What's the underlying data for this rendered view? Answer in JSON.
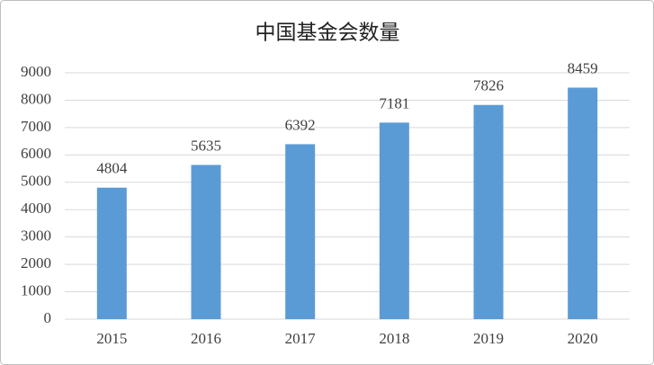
{
  "chart_data": {
    "type": "bar",
    "title": "中国基金会数量",
    "categories": [
      "2015",
      "2016",
      "2017",
      "2018",
      "2019",
      "2020"
    ],
    "values": [
      4804,
      5635,
      6392,
      7181,
      7826,
      8459
    ],
    "color": "#5b9bd5",
    "ylim": [
      0,
      9000
    ],
    "yticks": [
      0,
      1000,
      2000,
      3000,
      4000,
      5000,
      6000,
      7000,
      8000,
      9000
    ],
    "grid": true,
    "data_labels": true
  }
}
